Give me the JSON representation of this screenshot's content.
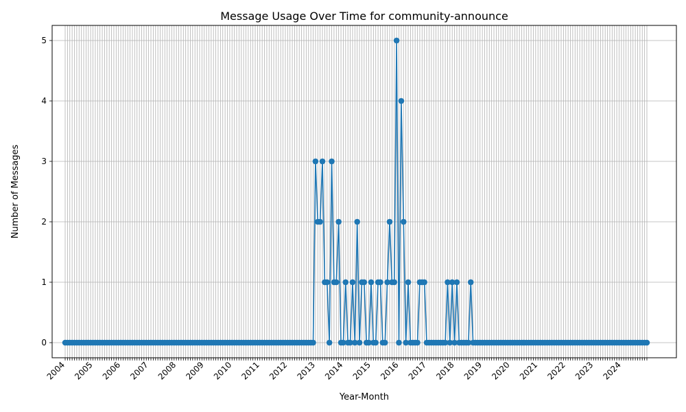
{
  "chart_data": {
    "type": "line",
    "title": "Message Usage Over Time for community-announce",
    "xlabel": "Year-Month",
    "ylabel": "Number of Messages",
    "grid": true,
    "ylim": [
      0,
      5
    ],
    "yticks": [
      "0",
      "1",
      "2",
      "3",
      "4",
      "5"
    ],
    "year_ticks": [
      "2004",
      "2005",
      "2006",
      "2007",
      "2008",
      "2009",
      "2010",
      "2011",
      "2012",
      "2013",
      "2014",
      "2015",
      "2016",
      "2017",
      "2018",
      "2019",
      "2020",
      "2021",
      "2022",
      "2023",
      "2024"
    ],
    "start_month": "2004-01",
    "end_month": "2024-12",
    "nonzero_points": [
      {
        "x": "2013-01",
        "y": 3
      },
      {
        "x": "2013-02",
        "y": 2
      },
      {
        "x": "2013-03",
        "y": 2
      },
      {
        "x": "2013-04",
        "y": 3
      },
      {
        "x": "2013-05",
        "y": 1
      },
      {
        "x": "2013-06",
        "y": 1
      },
      {
        "x": "2013-07",
        "y": 0
      },
      {
        "x": "2013-08",
        "y": 3
      },
      {
        "x": "2013-09",
        "y": 1
      },
      {
        "x": "2013-10",
        "y": 1
      },
      {
        "x": "2013-11",
        "y": 2
      },
      {
        "x": "2014-02",
        "y": 1
      },
      {
        "x": "2014-05",
        "y": 1
      },
      {
        "x": "2014-07",
        "y": 2
      },
      {
        "x": "2014-09",
        "y": 1
      },
      {
        "x": "2014-10",
        "y": 1
      },
      {
        "x": "2015-01",
        "y": 1
      },
      {
        "x": "2015-04",
        "y": 1
      },
      {
        "x": "2015-05",
        "y": 1
      },
      {
        "x": "2015-07",
        "y": 0
      },
      {
        "x": "2015-08",
        "y": 1
      },
      {
        "x": "2015-09",
        "y": 2
      },
      {
        "x": "2015-10",
        "y": 1
      },
      {
        "x": "2015-11",
        "y": 1
      },
      {
        "x": "2015-12",
        "y": 5
      },
      {
        "x": "2016-01",
        "y": 0
      },
      {
        "x": "2016-02",
        "y": 4
      },
      {
        "x": "2016-03",
        "y": 2
      },
      {
        "x": "2016-05",
        "y": 1
      },
      {
        "x": "2016-10",
        "y": 1
      },
      {
        "x": "2016-11",
        "y": 1
      },
      {
        "x": "2016-12",
        "y": 1
      },
      {
        "x": "2017-10",
        "y": 1
      },
      {
        "x": "2017-12",
        "y": 1
      },
      {
        "x": "2018-02",
        "y": 1
      },
      {
        "x": "2018-08",
        "y": 1
      }
    ],
    "color": "#1f77b4"
  }
}
